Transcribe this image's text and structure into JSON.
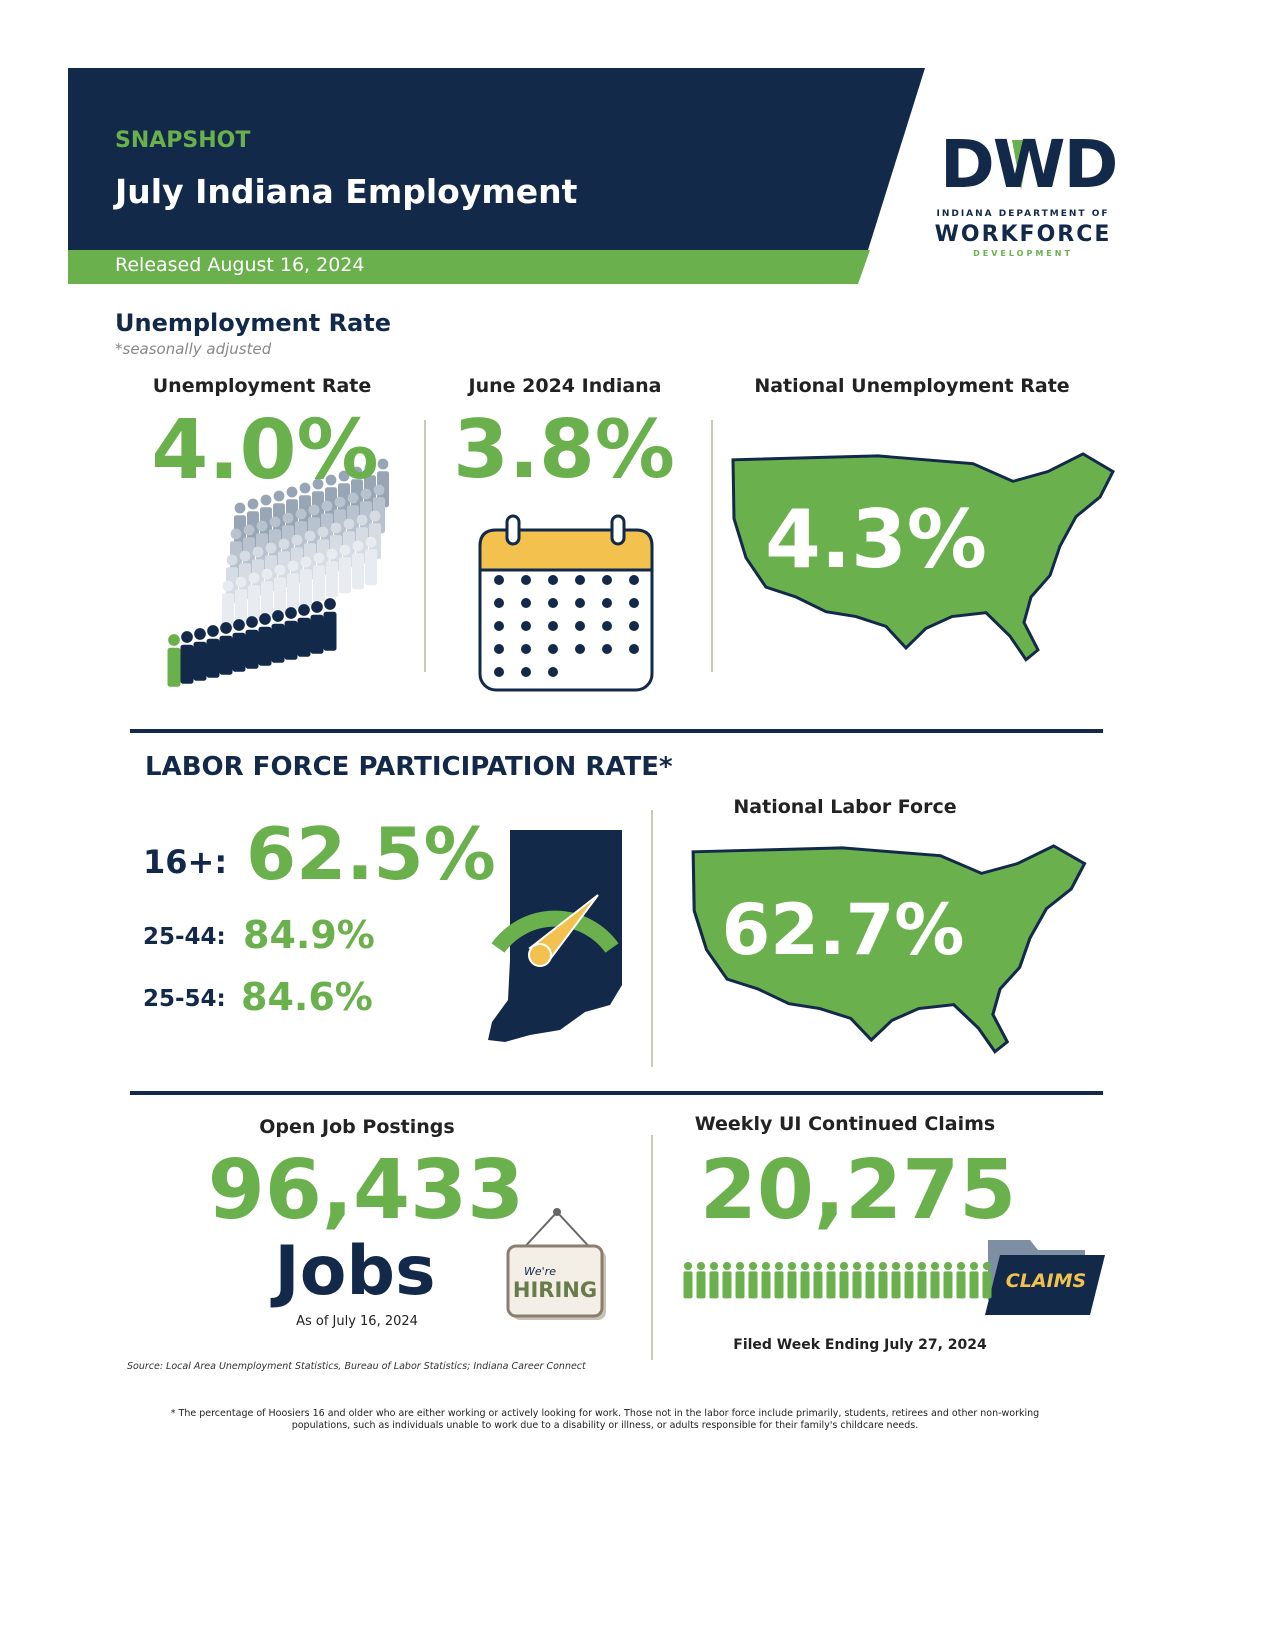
{
  "header": {
    "eyebrow": "SNAPSHOT",
    "title": "July Indiana Employment",
    "released": "Released August 16, 2024"
  },
  "logo": {
    "mark": "DWD",
    "line1": "INDIANA DEPARTMENT OF",
    "line2": "WORKFORCE",
    "line3": "DEVELOPMENT"
  },
  "unemployment": {
    "heading": "Unemployment Rate",
    "note": "*seasonally adjusted",
    "items": [
      {
        "label": "Unemployment Rate",
        "value": "4.0%"
      },
      {
        "label": "June 2024 Indiana",
        "value": "3.8%"
      },
      {
        "label": "National Unemployment Rate",
        "value": "4.3%"
      }
    ]
  },
  "labor_force": {
    "heading": "LABOR FORCE PARTICIPATION RATE*",
    "groups": [
      {
        "label": "16+:",
        "value": "62.5%"
      },
      {
        "label": "25-44:",
        "value": "84.9%"
      },
      {
        "label": "25-54:",
        "value": "84.6%"
      }
    ],
    "national_label": "National Labor Force",
    "national_value": "62.7%"
  },
  "jobs": {
    "label": "Open Job Postings",
    "value": "96,433",
    "unit": "Jobs",
    "as_of": "As of July 16, 2024",
    "sign_top": "We're",
    "sign_bottom": "HIRING"
  },
  "claims": {
    "label": "Weekly UI Continued Claims",
    "value": "20,275",
    "folder": "CLAIMS",
    "filed": "Filed Week Ending July 27, 2024"
  },
  "source": "Source: Local Area Unemployment Statistics, Bureau of Labor Statistics; Indiana Career Connect",
  "footnote": "* The percentage of Hoosiers 16 and older who are either working or actively looking for work. Those not in the labor force include primarily, students, retirees and other non-working populations, such as individuals unable to work due to a disability or illness, or adults responsible for their family's childcare needs."
}
